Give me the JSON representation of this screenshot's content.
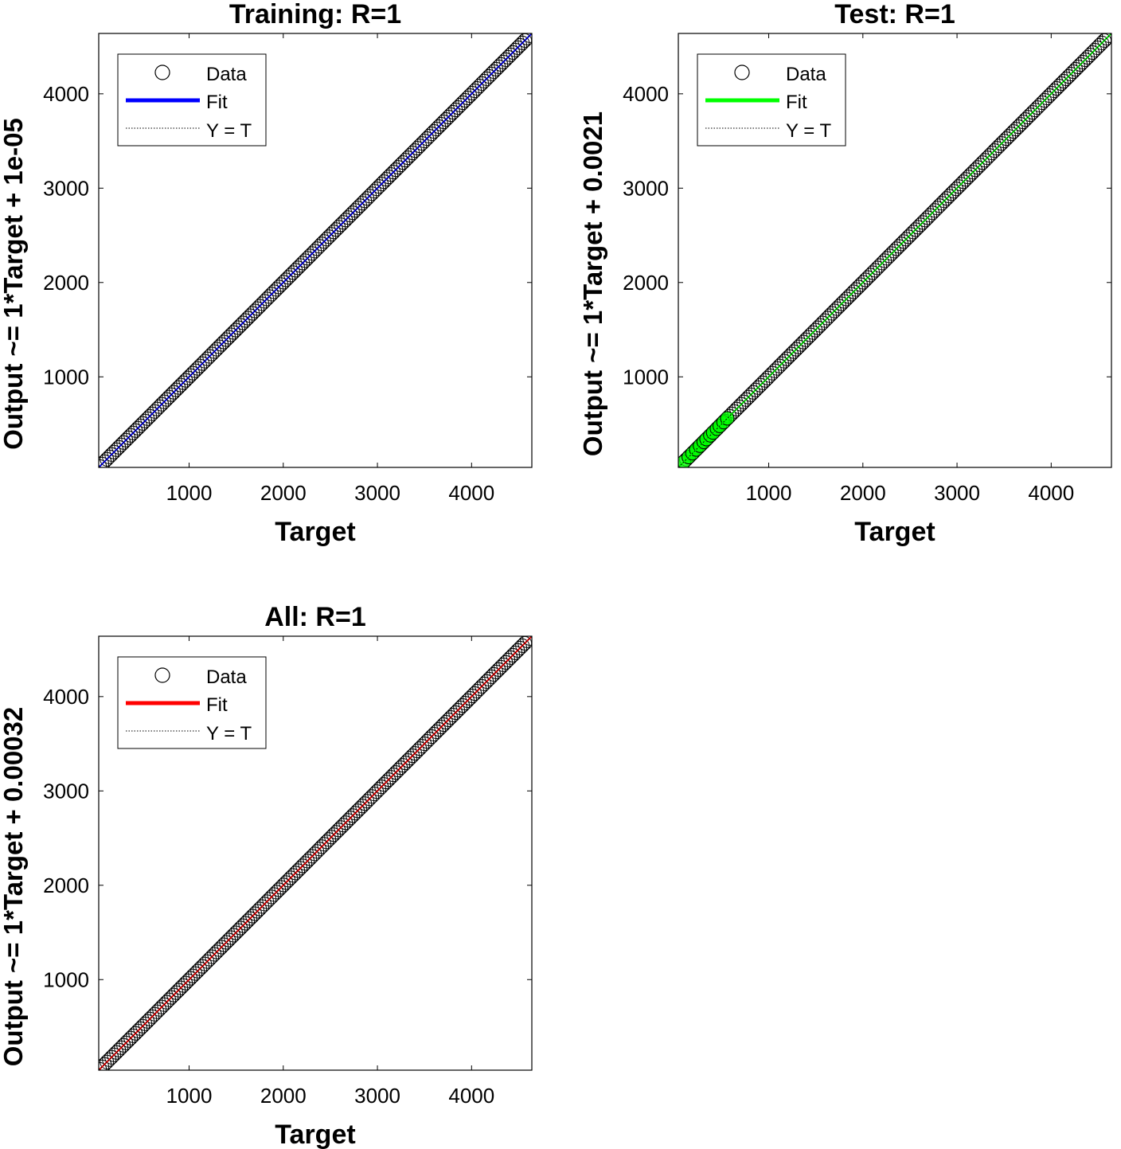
{
  "chart_data": [
    {
      "type": "scatter",
      "title": "Training: R=1",
      "xlabel": "Target",
      "ylabel": "Output ~= 1*Target + 1e-05",
      "xlim": [
        40,
        4640
      ],
      "ylim": [
        40,
        4640
      ],
      "xticks": [
        1000,
        2000,
        3000,
        4000
      ],
      "yticks": [
        1000,
        2000,
        3000,
        4000
      ],
      "grid": false,
      "legend_position": "top-left",
      "fit": {
        "slope": 1,
        "intercept": 1e-05
      },
      "fit_color": "#0000ff",
      "marker_edge_color": "#000000",
      "data_range": [
        50,
        4640
      ],
      "series": [
        {
          "name": "Data",
          "style": "circle"
        },
        {
          "name": "Fit",
          "style": "line"
        },
        {
          "name": "Y = T",
          "style": "dotted"
        }
      ]
    },
    {
      "type": "scatter",
      "title": "Test: R=1",
      "xlabel": "Target",
      "ylabel": "Output ~= 1*Target + 0.0021",
      "xlim": [
        40,
        4640
      ],
      "ylim": [
        40,
        4640
      ],
      "xticks": [
        1000,
        2000,
        3000,
        4000
      ],
      "yticks": [
        1000,
        2000,
        3000,
        4000
      ],
      "grid": false,
      "legend_position": "top-left",
      "fit": {
        "slope": 1,
        "intercept": 0.0021
      },
      "fit_color": "#00ff00",
      "marker_edge_color": "#000000",
      "data_range": [
        100,
        4640
      ],
      "series": [
        {
          "name": "Data",
          "style": "circle"
        },
        {
          "name": "Fit",
          "style": "line"
        },
        {
          "name": "Y = T",
          "style": "dotted"
        }
      ]
    },
    {
      "type": "scatter",
      "title": "All: R=1",
      "xlabel": "Target",
      "ylabel": "Output ~= 1*Target + 0.00032",
      "xlim": [
        40,
        4640
      ],
      "ylim": [
        40,
        4640
      ],
      "xticks": [
        1000,
        2000,
        3000,
        4000
      ],
      "yticks": [
        1000,
        2000,
        3000,
        4000
      ],
      "grid": false,
      "legend_position": "top-left",
      "fit": {
        "slope": 1,
        "intercept": 0.00032
      },
      "fit_color": "#ff0000",
      "marker_edge_color": "#000000",
      "data_range": [
        50,
        4640
      ],
      "series": [
        {
          "name": "Data",
          "style": "circle"
        },
        {
          "name": "Fit",
          "style": "line"
        },
        {
          "name": "Y = T",
          "style": "dotted"
        }
      ]
    }
  ]
}
